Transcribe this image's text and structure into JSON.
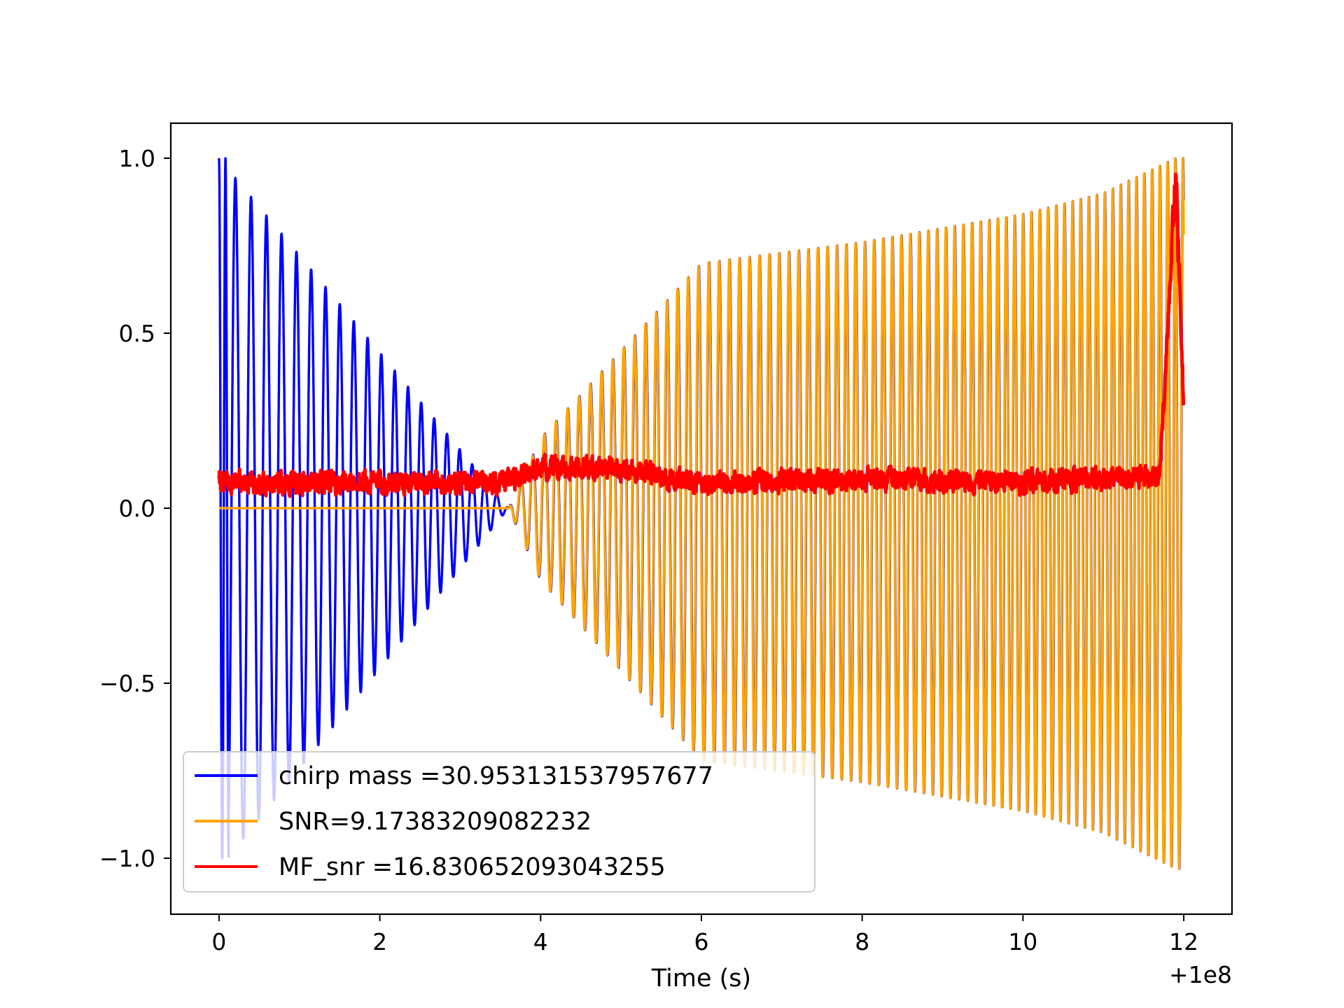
{
  "chart_data": {
    "type": "line",
    "title": "",
    "xlabel": "Time (s)",
    "ylabel": "",
    "x_offset_label": "+1e8",
    "xlim": [
      -0.6,
      12.6
    ],
    "ylim": [
      -1.16,
      1.1
    ],
    "x_ticks": [
      0,
      2,
      4,
      6,
      8,
      10,
      12
    ],
    "x_tick_labels": [
      "0",
      "2",
      "4",
      "6",
      "8",
      "10",
      "12"
    ],
    "y_ticks": [
      1.0,
      0.5,
      0.0,
      -0.5,
      -1.0
    ],
    "y_tick_labels": [
      "1.0",
      "0.5",
      "0.0",
      "−0.5",
      "−1.0"
    ],
    "grid": false,
    "legend_position": "lower-left",
    "series": [
      {
        "name": "chirp mass =30.953131537957677",
        "color": "#0000ff",
        "style": "chirp",
        "envelope": [
          [
            0.0,
            1.0
          ],
          [
            3.6,
            0.0
          ],
          [
            4.0,
            0.2
          ],
          [
            5.0,
            0.45
          ],
          [
            6.0,
            0.7
          ],
          [
            7.0,
            0.73
          ],
          [
            8.0,
            0.76
          ],
          [
            9.0,
            0.8
          ],
          [
            10.0,
            0.84
          ],
          [
            11.0,
            0.9
          ],
          [
            11.9,
            1.0
          ]
        ]
      },
      {
        "name": "SNR=9.17383209082232",
        "color": "#ffa500",
        "style": "chirp",
        "envelope": [
          [
            0.0,
            0.0
          ],
          [
            3.6,
            0.0
          ],
          [
            4.0,
            0.2
          ],
          [
            5.0,
            0.45
          ],
          [
            6.0,
            0.7
          ],
          [
            7.0,
            0.73
          ],
          [
            8.0,
            0.76
          ],
          [
            9.0,
            0.8
          ],
          [
            10.0,
            0.84
          ],
          [
            11.0,
            0.9
          ],
          [
            11.9,
            1.0
          ]
        ]
      },
      {
        "name": "MF_snr =16.830652093043255",
        "color": "#ff0000",
        "style": "noise",
        "baseline": [
          [
            0.0,
            0.06
          ],
          [
            3.5,
            0.06
          ],
          [
            4.0,
            0.1
          ],
          [
            5.0,
            0.1
          ],
          [
            6.0,
            0.06
          ],
          [
            8.0,
            0.07
          ],
          [
            10.0,
            0.06
          ],
          [
            11.7,
            0.08
          ],
          [
            11.9,
            0.95
          ],
          [
            12.0,
            0.25
          ]
        ]
      }
    ]
  }
}
